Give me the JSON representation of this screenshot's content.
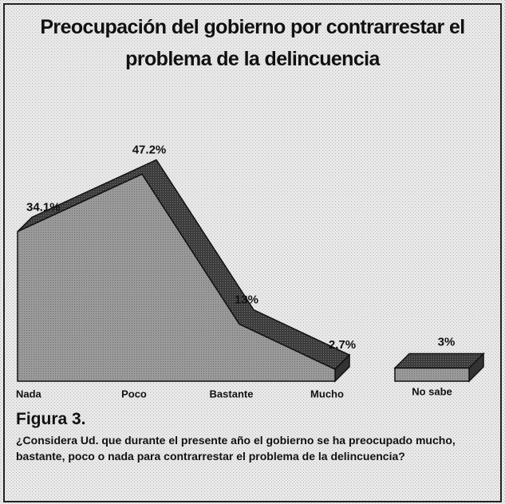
{
  "chart_data": [
    {
      "type": "area",
      "title": "Preocupación del gobierno por contrarrestar el problema de la delincuencia",
      "categories": [
        "Nada",
        "Poco",
        "Bastante",
        "Mucho"
      ],
      "values": [
        34.1,
        47.2,
        13,
        2.7
      ],
      "value_labels": [
        "34.1%",
        "47.2%",
        "13%",
        "2.7%"
      ],
      "color": "#8c8c8c"
    },
    {
      "type": "bar",
      "categories": [
        "No sabe"
      ],
      "values": [
        3
      ],
      "value_labels": [
        "3%"
      ],
      "color": "#8c8c8c"
    }
  ],
  "figure_label": "Figura 3.",
  "caption": "¿Considera Ud. que durante el presente año el gobierno se ha preocupado mucho, bastante, poco o nada para contrarrestar el problema de la delincuencia?"
}
